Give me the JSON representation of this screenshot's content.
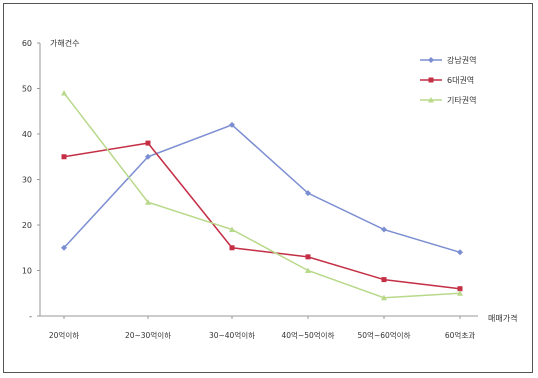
{
  "chart_data": {
    "type": "line",
    "title": "",
    "ylabel": "가해건수",
    "xlabel": "매매가격",
    "ylim": [
      0,
      60
    ],
    "yticks": [
      0,
      10,
      20,
      30,
      40,
      50,
      60
    ],
    "ytick_labels": [
      "-",
      "10",
      "20",
      "30",
      "40",
      "50",
      "60"
    ],
    "grid": false,
    "legend_position": "top-right",
    "categories": [
      "20억이하",
      "20~30억이하",
      "30~40억이하",
      "40억~50억이하",
      "50억~60억이하",
      "60억초과"
    ],
    "series": [
      {
        "name": "강남권역",
        "color": "#7b8ed1",
        "marker": "diamond",
        "values": [
          15,
          35,
          42,
          27,
          19,
          14
        ]
      },
      {
        "name": "6대권역",
        "color": "#c42f45",
        "marker": "square",
        "values": [
          35,
          38,
          15,
          13,
          8,
          6
        ]
      },
      {
        "name": "기타권역",
        "color": "#b8d88a",
        "marker": "triangle",
        "values": [
          49,
          25,
          19,
          10,
          4,
          5
        ]
      }
    ]
  }
}
